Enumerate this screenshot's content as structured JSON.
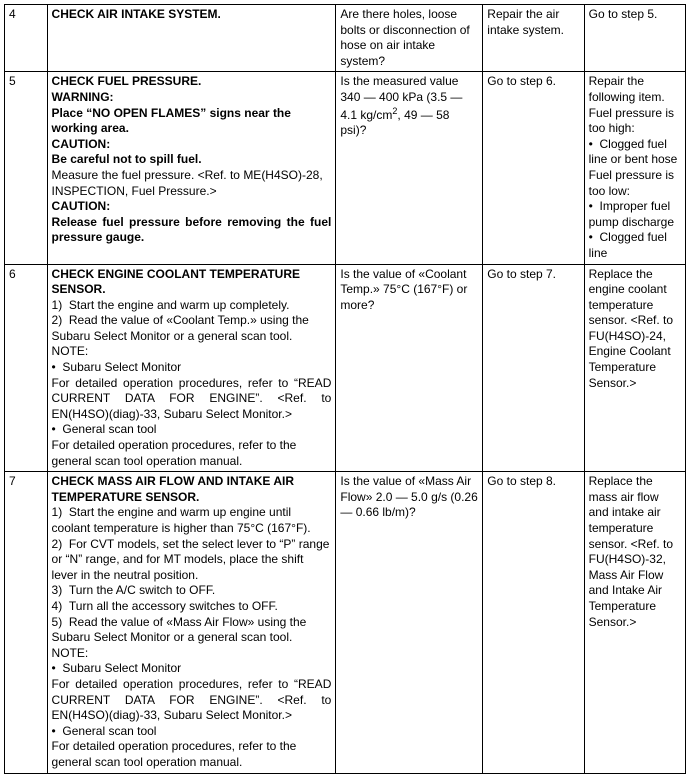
{
  "rows": [
    {
      "num": "4",
      "title": "CHECK AIR INTAKE SYSTEM.",
      "body_html": "",
      "check": "Are there holes, loose bolts or disconnection of hose on air intake system?",
      "yes": "Repair the air intake system.",
      "no": "Go to step 5."
    },
    {
      "num": "5",
      "title": "CHECK FUEL PRESSURE.",
      "body_html": "<div class='warn'>WARNING:</div><div class='warn'>Place “NO OPEN FLAMES” signs near the working area.</div><div class='warn'>CAUTION:</div><div class='warn'>Be careful not to spill fuel.</div><div>Measure the fuel pressure. &lt;Ref. to ME(H4SO)-28, INSPECTION, Fuel Pressure.&gt;</div><div class='warn'>CAUTION:</div><div class='warn justify'>Release fuel pressure before removing the fuel pressure gauge.</div>",
      "check": "Is the measured value 340 — 400 kPa (3.5 — 4.1 kg/cm<sup>2</sup>, 49 — 58 psi)?",
      "yes": "Go to step 6.",
      "no": "Repair the following item.<br>Fuel pressure is too high:<br>•&nbsp;&nbsp;Clogged fuel line or bent hose<br>Fuel pressure is too low:<br>•&nbsp;&nbsp;Improper fuel pump discharge<br>•&nbsp;&nbsp;Clogged fuel line"
    },
    {
      "num": "6",
      "title": "CHECK ENGINE COOLANT TEMPERATURE SENSOR.",
      "body_html": "<div>1)&nbsp;&nbsp;Start the engine and warm up completely.</div><div>2)&nbsp;&nbsp;Read the value of «Coolant Temp.» using the Subaru Select Monitor or a general scan tool.</div><div>NOTE:</div><div>•&nbsp;&nbsp;Subaru Select Monitor</div><div class='justify'>For detailed operation procedures, refer to “READ CURRENT DATA FOR ENGINE”. &lt;Ref. to EN(H4SO)(diag)-33, Subaru Select Monitor.&gt;</div><div>•&nbsp;&nbsp;General scan tool</div><div>For detailed operation procedures, refer to the general scan tool operation manual.</div>",
      "check": "Is the value of «Coolant Temp.» 75°C (167°F) or more?",
      "yes": "Go to step 7.",
      "no": "Replace the engine coolant temperature sensor. &lt;Ref. to FU(H4SO)-24, Engine Coolant Temperature Sensor.&gt;"
    },
    {
      "num": "7",
      "title": "CHECK MASS AIR FLOW AND INTAKE AIR TEMPERATURE SENSOR.",
      "body_html": "<div>1)&nbsp;&nbsp;Start the engine and warm up engine until coolant temperature is higher than 75°C (167°F).</div><div>2)&nbsp;&nbsp;For CVT models, set the select lever to “P” range or “N” range, and for MT models, place the shift lever in the neutral position.</div><div>3)&nbsp;&nbsp;Turn the A/C switch to OFF.</div><div>4)&nbsp;&nbsp;Turn all the accessory switches to OFF.</div><div>5)&nbsp;&nbsp;Read the value of «Mass Air Flow» using the Subaru Select Monitor or a general scan tool.</div><div>NOTE:</div><div>•&nbsp;&nbsp;Subaru Select Monitor</div><div class='justify'>For detailed operation procedures, refer to “READ CURRENT DATA FOR ENGINE”. &lt;Ref. to EN(H4SO)(diag)-33, Subaru Select Monitor.&gt;</div><div>•&nbsp;&nbsp;General scan tool</div><div>For detailed operation procedures, refer to the general scan tool operation manual.</div>",
      "check": "Is the value of «Mass Air Flow» 2.0 — 5.0 g/s (0.26 — 0.66 lb/m)?",
      "yes": "Go to step 8.",
      "no": "Replace the mass air flow and intake air temperature sensor. &lt;Ref. to FU(H4SO)-32, Mass Air Flow and Intake Air Temperature Sensor.&gt;"
    }
  ]
}
